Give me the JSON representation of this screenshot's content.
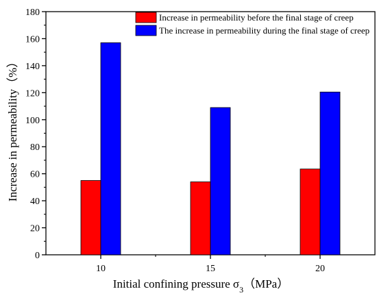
{
  "chart_data": {
    "type": "bar",
    "title": "",
    "xlabel": "Initial confining pressure σ",
    "xlabel_sub": "3",
    "xlabel_unit": "（MPa）",
    "ylabel": "Increase in permeability（%）",
    "ylim": [
      0,
      180
    ],
    "yticks": [
      0,
      20,
      40,
      60,
      80,
      100,
      120,
      140,
      160,
      180
    ],
    "categories": [
      "10",
      "15",
      "20"
    ],
    "grid": false,
    "legend_position": "top-right",
    "series": [
      {
        "name": "Increase in permeability before the final stage of creep",
        "color": "#ff0000",
        "values": [
          55,
          54,
          63.5
        ]
      },
      {
        "name": "The increase in permeability during the final stage of creep",
        "color": "#0000ff",
        "values": [
          157,
          109,
          120.5
        ]
      }
    ]
  }
}
